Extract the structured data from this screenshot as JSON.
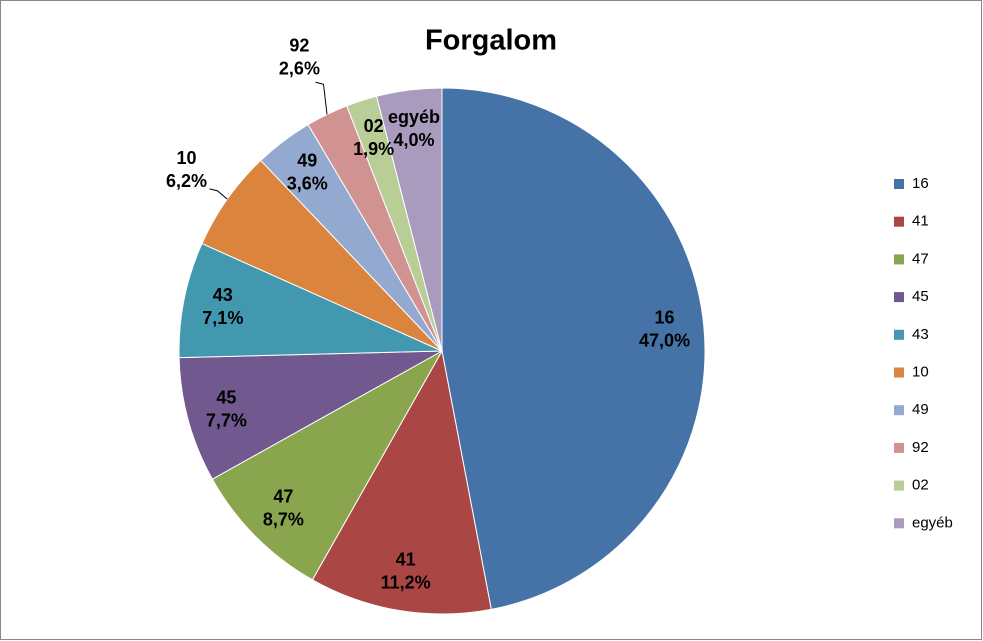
{
  "chart_data": {
    "type": "pie",
    "title": "Forgalom",
    "categories": [
      "16",
      "41",
      "47",
      "45",
      "43",
      "10",
      "49",
      "92",
      "02",
      "egyéb"
    ],
    "values": [
      47.0,
      11.2,
      8.7,
      7.7,
      7.1,
      6.2,
      3.6,
      2.6,
      1.9,
      4.0
    ],
    "value_labels": [
      "47,0%",
      "11,2%",
      "8,7%",
      "7,7%",
      "7,1%",
      "6,2%",
      "3,6%",
      "2,6%",
      "1,9%",
      "4,0%"
    ],
    "colors": [
      "#4572a7",
      "#aa4643",
      "#89a54e",
      "#71588f",
      "#4198af",
      "#db843d",
      "#93a9cf",
      "#d19392",
      "#b9cd96",
      "#a99bbd"
    ],
    "legend": "right"
  }
}
